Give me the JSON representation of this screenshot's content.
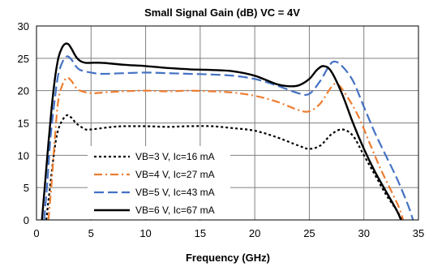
{
  "chart_data": {
    "type": "line",
    "title": "Small Signal Gain (dB) VC = 4V",
    "xlabel": "Frequency (GHz)",
    "ylabel": "",
    "xlim": [
      0,
      35
    ],
    "ylim": [
      0,
      30
    ],
    "xticks": [
      0,
      5,
      10,
      15,
      20,
      25,
      30,
      35
    ],
    "yticks": [
      0,
      5,
      10,
      15,
      20,
      25,
      30
    ],
    "grid": true,
    "legend_position": "center-left",
    "series": [
      {
        "name": "VB=3 V, Ic=16 mA",
        "color": "#000000",
        "dash": "dotted",
        "x": [
          0.9,
          1.3,
          1.7,
          2.0,
          2.4,
          2.8,
          3.2,
          3.6,
          4.0,
          4.5,
          5.0,
          6.0,
          7.0,
          8.0,
          9.0,
          10.0,
          12.0,
          14.0,
          16.0,
          18.0,
          20.0,
          22.0,
          24.0,
          25.0,
          26.0,
          27.0,
          28.0,
          29.0,
          30.0,
          31.0,
          32.0,
          33.0,
          33.5
        ],
        "y": [
          0.0,
          6.0,
          11.5,
          14.0,
          15.5,
          16.2,
          15.8,
          15.0,
          14.5,
          14.0,
          14.0,
          14.2,
          14.4,
          14.5,
          14.5,
          14.5,
          14.4,
          14.5,
          14.5,
          14.2,
          13.8,
          12.8,
          11.5,
          11.0,
          11.5,
          13.2,
          14.0,
          13.0,
          10.0,
          7.0,
          4.0,
          1.5,
          0.0
        ]
      },
      {
        "name": "VB=4 V, Ic=27 mA",
        "color": "#ED7D31",
        "dash": "dashdot",
        "x": [
          1.1,
          1.4,
          1.7,
          2.0,
          2.4,
          2.8,
          3.2,
          3.6,
          4.0,
          5.0,
          6.0,
          8.0,
          10.0,
          12.0,
          14.0,
          16.0,
          18.0,
          20.0,
          22.0,
          24.0,
          25.0,
          26.0,
          27.0,
          27.6,
          28.5,
          29.5,
          30.5,
          31.5,
          32.5,
          33.2,
          33.6
        ],
        "y": [
          0.0,
          6.0,
          13.0,
          18.5,
          21.0,
          22.0,
          21.5,
          20.5,
          20.0,
          19.6,
          19.7,
          19.9,
          20.0,
          19.9,
          20.0,
          19.9,
          19.7,
          19.2,
          18.3,
          17.0,
          16.8,
          18.0,
          20.5,
          21.0,
          19.0,
          16.0,
          12.0,
          8.0,
          4.5,
          2.0,
          0.0
        ]
      },
      {
        "name": "VB=5 V, Ic=43 mA",
        "color": "#4472C4",
        "dash": "dashed",
        "x": [
          0.7,
          1.0,
          1.3,
          1.7,
          2.0,
          2.4,
          2.8,
          3.2,
          3.6,
          4.0,
          5.0,
          6.0,
          8.0,
          10.0,
          12.0,
          14.0,
          16.0,
          18.0,
          20.0,
          22.0,
          24.0,
          25.0,
          26.0,
          26.8,
          27.3,
          28.0,
          29.0,
          30.0,
          31.0,
          32.0,
          33.0,
          34.0,
          34.5
        ],
        "y": [
          0.0,
          6.0,
          13.0,
          19.0,
          22.5,
          24.5,
          25.3,
          24.8,
          23.8,
          23.2,
          22.8,
          22.6,
          22.7,
          22.8,
          22.7,
          22.6,
          22.5,
          22.3,
          21.8,
          20.8,
          19.6,
          19.5,
          21.5,
          23.8,
          24.5,
          23.8,
          21.5,
          17.5,
          13.5,
          10.0,
          6.5,
          2.5,
          0.0
        ]
      },
      {
        "name": "VB=6 V, Ic=67 mA",
        "color": "#000000",
        "dash": "solid",
        "x": [
          0.5,
          0.8,
          1.1,
          1.4,
          1.7,
          2.0,
          2.3,
          2.6,
          2.9,
          3.2,
          3.6,
          4.0,
          4.5,
          5.0,
          6.0,
          8.0,
          10.0,
          12.0,
          14.0,
          16.0,
          18.0,
          20.0,
          22.0,
          23.0,
          24.0,
          25.0,
          25.7,
          26.3,
          27.0,
          28.0,
          29.0,
          30.0,
          31.0,
          32.0,
          33.0,
          33.4
        ],
        "y": [
          0.0,
          6.0,
          12.0,
          17.5,
          22.0,
          25.0,
          26.5,
          27.2,
          27.2,
          26.5,
          25.3,
          24.6,
          24.3,
          24.3,
          24.3,
          24.0,
          23.8,
          23.5,
          23.3,
          23.2,
          23.0,
          22.3,
          21.0,
          20.7,
          20.8,
          21.8,
          23.2,
          23.8,
          23.0,
          19.5,
          15.0,
          11.0,
          7.5,
          4.5,
          1.5,
          0.0
        ]
      }
    ]
  }
}
